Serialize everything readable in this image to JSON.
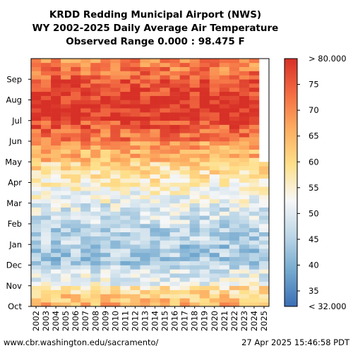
{
  "chart_data": {
    "type": "heatmap",
    "title_lines": [
      "KRDD Redding Municipal Airport (NWS)",
      "WY 2002-2025 Daily Average Air Temperature",
      "Observed Range 0.000 : 98.475 F"
    ],
    "x_tick_labels": [
      "2002",
      "2003",
      "2004",
      "2005",
      "2006",
      "2007",
      "2008",
      "2009",
      "2010",
      "2011",
      "2012",
      "2013",
      "2014",
      "2015",
      "2016",
      "2017",
      "2018",
      "2019",
      "2020",
      "2021",
      "2022",
      "2023",
      "2024",
      "2025"
    ],
    "y_tick_labels": [
      "Oct",
      "Nov",
      "Dec",
      "Jan",
      "Feb",
      "Mar",
      "Apr",
      "May",
      "Jun",
      "Jul",
      "Aug",
      "Sep"
    ],
    "colorbar": {
      "max_label": "> 80.000",
      "min_label": "< 32.000",
      "tick_labels": [
        "35",
        "40",
        "45",
        "50",
        "55",
        "60",
        "65",
        "70",
        "75"
      ],
      "range": [
        32,
        80
      ],
      "colors": [
        "#3b6fb6",
        "#74a9cf",
        "#bdd7e7",
        "#f7f7f7",
        "#fee08b",
        "#fdae61",
        "#f46d43",
        "#d73027"
      ]
    },
    "monthly_mean_temperature_f": [
      65,
      52,
      44,
      45,
      48,
      52,
      57,
      64,
      72,
      80,
      79,
      74
    ],
    "last_year_data_ends": "Apr"
  },
  "footer": {
    "source": "www.cbr.washington.edu/sacramento/",
    "timestamp": "27 Apr 2025 15:46:58 PDT"
  }
}
